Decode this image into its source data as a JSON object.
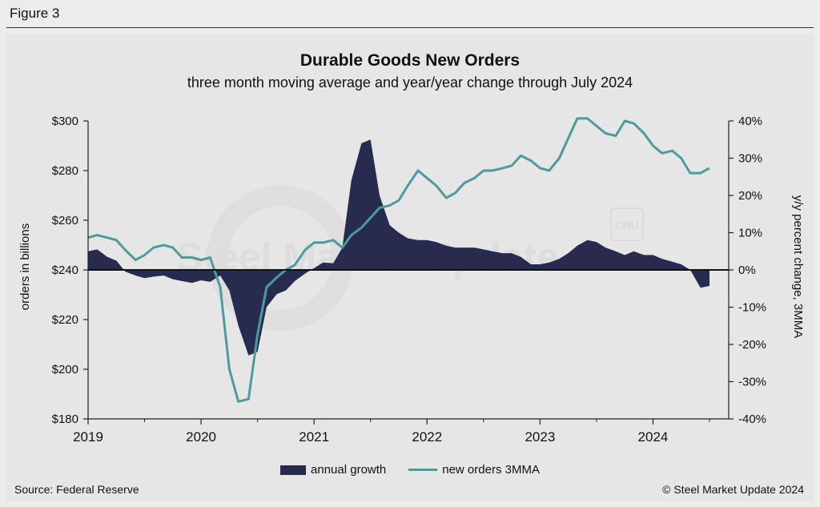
{
  "figure_label": "Figure 3",
  "source": "Source: Federal Reserve",
  "copyright": "© Steel Market Update 2024",
  "watermark": "Steel Market Update",
  "watermark_badge": "CRU",
  "colors": {
    "area": "#272c4e",
    "line": "#4e9a9c",
    "background": "#e6e6e6"
  },
  "chart_data": {
    "type": "line",
    "title": "Durable Goods New Orders",
    "subtitle": "three month moving average and year/year change through July 2024",
    "ylabel_left": "orders in billions",
    "ylabel_right": "y/y percent change, 3MMA",
    "ylim_left": [
      180,
      300
    ],
    "ylim_right": [
      -40,
      40
    ],
    "yticks_left": [
      "$300",
      "$280",
      "$260",
      "$240",
      "$220",
      "$200",
      "$180"
    ],
    "yticks_right": [
      "40%",
      "30%",
      "20%",
      "10%",
      "0%",
      "-10%",
      "-20%",
      "-30%",
      "-40%"
    ],
    "xlim": [
      2019.0,
      2024.67
    ],
    "xticks": [
      "2019",
      "2020",
      "2021",
      "2022",
      "2023",
      "2024"
    ],
    "legend": {
      "area_label": "annual growth",
      "line_label": "new orders 3MMA"
    },
    "series": [
      {
        "name": "annual growth",
        "axis": "right",
        "kind": "area",
        "x": [
          2019.0,
          2019.08,
          2019.17,
          2019.25,
          2019.33,
          2019.42,
          2019.5,
          2019.58,
          2019.67,
          2019.75,
          2019.83,
          2019.92,
          2020.0,
          2020.08,
          2020.17,
          2020.25,
          2020.33,
          2020.42,
          2020.5,
          2020.58,
          2020.67,
          2020.75,
          2020.83,
          2020.92,
          2021.0,
          2021.08,
          2021.17,
          2021.25,
          2021.33,
          2021.42,
          2021.5,
          2021.58,
          2021.67,
          2021.75,
          2021.83,
          2021.92,
          2022.0,
          2022.08,
          2022.17,
          2022.25,
          2022.33,
          2022.42,
          2022.5,
          2022.58,
          2022.67,
          2022.75,
          2022.83,
          2022.92,
          2023.0,
          2023.08,
          2023.17,
          2023.25,
          2023.33,
          2023.42,
          2023.5,
          2023.58,
          2023.67,
          2023.75,
          2023.83,
          2023.92,
          2024.0,
          2024.08,
          2024.17,
          2024.25,
          2024.33,
          2024.42,
          2024.5
        ],
        "values": [
          5,
          5.5,
          3.5,
          2.5,
          -0.5,
          -1.5,
          -2.2,
          -1.8,
          -1.5,
          -2.5,
          -3,
          -3.5,
          -2.8,
          -3.2,
          -1.5,
          -5.5,
          -15,
          -23,
          -22,
          -10,
          -6.5,
          -5.5,
          -3,
          -1,
          0.5,
          2,
          1.8,
          6,
          24,
          34,
          35,
          20,
          12,
          10,
          8.5,
          8,
          8,
          7.5,
          6.5,
          6,
          6,
          6,
          5.5,
          5,
          4.5,
          4.5,
          3.5,
          1.5,
          1.5,
          2,
          3,
          4.5,
          6.5,
          8,
          7.5,
          6,
          5,
          4,
          5,
          4,
          4,
          3,
          2.2,
          1.5,
          0,
          -4.8,
          -4.3
        ]
      },
      {
        "name": "new orders 3MMA",
        "axis": "left",
        "kind": "line",
        "x": [
          2019.0,
          2019.08,
          2019.17,
          2019.25,
          2019.33,
          2019.42,
          2019.5,
          2019.58,
          2019.67,
          2019.75,
          2019.83,
          2019.92,
          2020.0,
          2020.08,
          2020.17,
          2020.25,
          2020.33,
          2020.42,
          2020.5,
          2020.58,
          2020.67,
          2020.75,
          2020.83,
          2020.92,
          2021.0,
          2021.08,
          2021.17,
          2021.25,
          2021.33,
          2021.42,
          2021.5,
          2021.58,
          2021.67,
          2021.75,
          2021.83,
          2021.92,
          2022.0,
          2022.08,
          2022.17,
          2022.25,
          2022.33,
          2022.42,
          2022.5,
          2022.58,
          2022.67,
          2022.75,
          2022.83,
          2022.92,
          2023.0,
          2023.08,
          2023.17,
          2023.25,
          2023.33,
          2023.42,
          2023.5,
          2023.58,
          2023.67,
          2023.75,
          2023.83,
          2023.92,
          2024.0,
          2024.08,
          2024.17,
          2024.25,
          2024.33,
          2024.42,
          2024.5
        ],
        "values": [
          253,
          254,
          253,
          252,
          248,
          244,
          246,
          249,
          250,
          249,
          245,
          245,
          244,
          245,
          233,
          200,
          187,
          188,
          214,
          233,
          237,
          240,
          242,
          248,
          251,
          251,
          252,
          249,
          254,
          257,
          261,
          265,
          266,
          268,
          274,
          280,
          277,
          274,
          269,
          271,
          275,
          277,
          280,
          280,
          281,
          282,
          286,
          284,
          281,
          280,
          285,
          293,
          301,
          301,
          298,
          295,
          294,
          300,
          299,
          295,
          290,
          287,
          288,
          285,
          279,
          279,
          281
        ]
      }
    ]
  }
}
